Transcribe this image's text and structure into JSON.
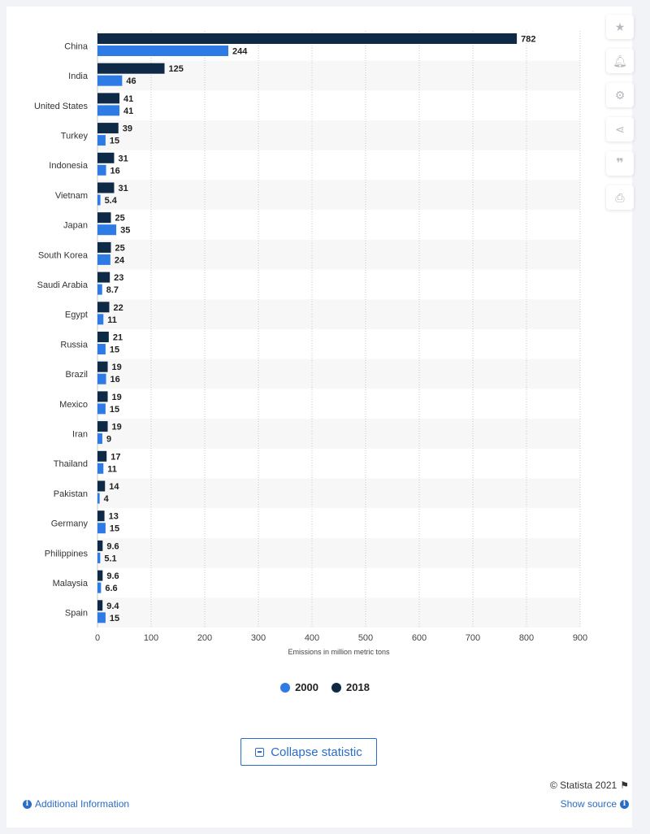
{
  "toolbar": {
    "icons": [
      "star-icon",
      "bell-icon",
      "gear-icon",
      "share-icon",
      "quote-icon",
      "print-icon"
    ]
  },
  "chart_data": {
    "type": "bar",
    "orientation": "horizontal",
    "categories": [
      "China",
      "India",
      "United States",
      "Turkey",
      "Indonesia",
      "Vietnam",
      "Japan",
      "South Korea",
      "Saudi Arabia",
      "Egypt",
      "Russia",
      "Brazil",
      "Mexico",
      "Iran",
      "Thailand",
      "Pakistan",
      "Germany",
      "Philippines",
      "Malaysia",
      "Spain"
    ],
    "series": [
      {
        "name": "2018",
        "color": "#0e2a47",
        "values": [
          782,
          125,
          41,
          39,
          31,
          31,
          25,
          25,
          23,
          22,
          21,
          19,
          19,
          19,
          17,
          14,
          13,
          9.6,
          9.6,
          9.4
        ]
      },
      {
        "name": "2000",
        "color": "#2f7be5",
        "values": [
          244,
          46,
          41,
          15,
          16,
          5.4,
          35,
          24,
          8.7,
          11,
          15,
          16,
          15,
          9,
          11,
          4,
          15,
          5.1,
          6.6,
          15
        ]
      }
    ],
    "xlabel": "Emissions in million metric tons",
    "xlim": [
      0,
      900
    ],
    "xticks": [
      "0",
      "100",
      "200",
      "300",
      "400",
      "500",
      "600",
      "700",
      "800",
      "900"
    ],
    "grid": true,
    "legend_position": "bottom"
  },
  "legend": [
    {
      "label": "2000",
      "color": "#2f7be5"
    },
    {
      "label": "2018",
      "color": "#0e2a47"
    }
  ],
  "footer": {
    "collapse_label": "Collapse statistic",
    "copyright": "© Statista 2021",
    "additional_info": "Additional Information",
    "show_source": "Show source"
  }
}
